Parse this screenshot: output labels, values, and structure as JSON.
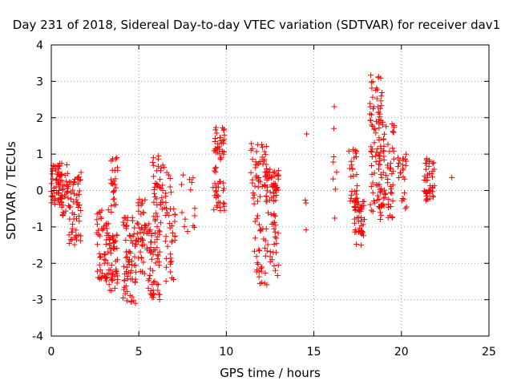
{
  "chart_data": {
    "type": "scatter",
    "title": "Day 231 of 2018, Sidereal Day-to-day VTEC variation (SDTVAR) for receiver dav1",
    "xlabel": "GPS time / hours",
    "ylabel": "SDTVAR / TECUs",
    "xlim": [
      0,
      25
    ],
    "ylim": [
      -4,
      4
    ],
    "xticks": [
      0,
      5,
      10,
      15,
      20,
      25
    ],
    "xtick_labels": [
      "0",
      "5",
      "10",
      "15",
      "20",
      "25"
    ],
    "yticks": [
      -4,
      -3,
      -2,
      -1,
      0,
      1,
      2,
      3,
      4
    ],
    "ytick_labels": [
      "-4",
      "-3",
      "-2",
      "-1",
      "0",
      "1",
      "2",
      "3",
      "4"
    ],
    "grid": true,
    "marker": "+",
    "color": "#ff0000",
    "series": [
      {
        "name": "SDTVAR",
        "clusters": [
          {
            "x_start": 0.0,
            "x_end": 0.6,
            "y_min": -0.4,
            "y_max": 0.7,
            "n": 45
          },
          {
            "x_start": 0.4,
            "x_end": 1.0,
            "y_min": -0.7,
            "y_max": 0.8,
            "n": 45
          },
          {
            "x_start": 1.0,
            "x_end": 1.7,
            "y_min": -1.5,
            "y_max": 0.5,
            "n": 55
          },
          {
            "x_start": 2.6,
            "x_end": 3.3,
            "y_min": -2.5,
            "y_max": -0.5,
            "n": 55
          },
          {
            "x_start": 3.3,
            "x_end": 3.8,
            "y_min": -2.8,
            "y_max": -1.2,
            "n": 45
          },
          {
            "x_start": 3.4,
            "x_end": 3.8,
            "y_min": -0.6,
            "y_max": 0.9,
            "n": 25
          },
          {
            "x_start": 4.1,
            "x_end": 4.9,
            "y_min": -3.1,
            "y_max": -0.7,
            "n": 70
          },
          {
            "x_start": 4.9,
            "x_end": 5.5,
            "y_min": -2.3,
            "y_max": -0.2,
            "n": 45
          },
          {
            "x_start": 5.5,
            "x_end": 6.2,
            "y_min": -3.0,
            "y_max": -0.9,
            "n": 55
          },
          {
            "x_start": 5.8,
            "x_end": 6.5,
            "y_min": -1.3,
            "y_max": 1.0,
            "n": 45
          },
          {
            "x_start": 6.5,
            "x_end": 7.1,
            "y_min": -2.7,
            "y_max": 0.5,
            "n": 40
          },
          {
            "x_start": 7.4,
            "x_end": 8.2,
            "y_min": -1.2,
            "y_max": 0.6,
            "n": 14
          },
          {
            "x_start": 9.3,
            "x_end": 9.9,
            "y_min": 0.6,
            "y_max": 1.8,
            "n": 35
          },
          {
            "x_start": 9.2,
            "x_end": 9.9,
            "y_min": -0.6,
            "y_max": 0.6,
            "n": 30
          },
          {
            "x_start": 11.4,
            "x_end": 12.3,
            "y_min": -0.4,
            "y_max": 1.3,
            "n": 45
          },
          {
            "x_start": 11.6,
            "x_end": 12.4,
            "y_min": -2.6,
            "y_max": -0.6,
            "n": 35
          },
          {
            "x_start": 12.2,
            "x_end": 13.0,
            "y_min": -0.3,
            "y_max": 0.6,
            "n": 50
          },
          {
            "x_start": 12.5,
            "x_end": 13.0,
            "y_min": -2.4,
            "y_max": -0.6,
            "n": 25
          },
          {
            "x_start": 14.5,
            "x_end": 14.6,
            "y_min": -1.3,
            "y_max": 1.9,
            "n": 4
          },
          {
            "x_start": 16.1,
            "x_end": 16.3,
            "y_min": -1.0,
            "y_max": 2.7,
            "n": 8
          },
          {
            "x_start": 17.0,
            "x_end": 17.5,
            "y_min": -0.3,
            "y_max": 1.2,
            "n": 25
          },
          {
            "x_start": 17.3,
            "x_end": 17.9,
            "y_min": -1.6,
            "y_max": -0.2,
            "n": 50
          },
          {
            "x_start": 18.2,
            "x_end": 18.9,
            "y_min": -0.6,
            "y_max": 3.2,
            "n": 80
          },
          {
            "x_start": 18.7,
            "x_end": 19.6,
            "y_min": -0.8,
            "y_max": 1.9,
            "n": 70
          },
          {
            "x_start": 19.8,
            "x_end": 20.3,
            "y_min": 0.3,
            "y_max": 1.0,
            "n": 18
          },
          {
            "x_start": 20.0,
            "x_end": 20.3,
            "y_min": -0.5,
            "y_max": 0.0,
            "n": 6
          },
          {
            "x_start": 21.3,
            "x_end": 21.9,
            "y_min": -0.3,
            "y_max": 0.9,
            "n": 45
          },
          {
            "x_start": 22.8,
            "x_end": 22.9,
            "y_min": 0.3,
            "y_max": 0.4,
            "n": 1
          }
        ]
      }
    ]
  }
}
